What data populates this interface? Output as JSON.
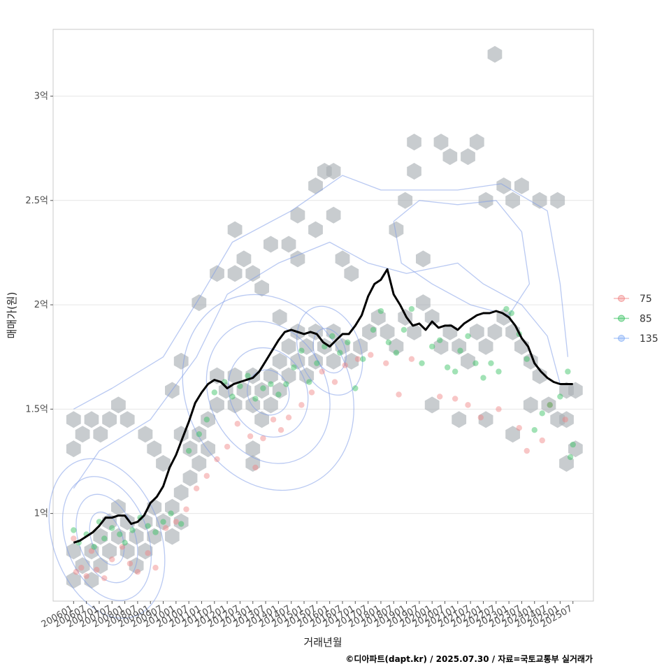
{
  "chart_data": {
    "type": "scatter",
    "xlabel": "거래년월",
    "ylabel": "매매가(원)",
    "caption": "©디아파트(dapt.kr) / 2025.07.30 / 자료=국토교통부 실거래가",
    "x_ticks": [
      "200601",
      "200607",
      "200701",
      "200707",
      "200801",
      "200807",
      "200901",
      "200907",
      "201001",
      "201007",
      "201101",
      "201107",
      "201201",
      "201207",
      "201301",
      "201307",
      "201401",
      "201407",
      "201501",
      "201507",
      "201601",
      "201607",
      "201701",
      "201707",
      "201801",
      "201807",
      "201901",
      "201907",
      "202001",
      "202007",
      "202101",
      "202107",
      "202201",
      "202207",
      "202301",
      "202307",
      "202401",
      "202407",
      "202501",
      "202507"
    ],
    "y_ticks": [
      {
        "value": 1.0,
        "label": "1억"
      },
      {
        "value": 1.5,
        "label": "1.5억"
      },
      {
        "value": 2.0,
        "label": "2억"
      },
      {
        "value": 2.5,
        "label": "2.5억"
      },
      {
        "value": 3.0,
        "label": "3억"
      }
    ],
    "ylim": [
      0.58,
      3.32
    ],
    "xlim": [
      2005.2,
      2026.3
    ],
    "grid": true,
    "legend_position": "right",
    "legend": [
      {
        "name": "75",
        "color": "#f08080"
      },
      {
        "name": "85",
        "color": "#2fbf5a"
      },
      {
        "name": "135",
        "color": "#7aa8f5"
      }
    ],
    "trend_line": {
      "color": "#000000",
      "x": [
        2006.0,
        2006.25,
        2006.5,
        2006.75,
        2007.0,
        2007.25,
        2007.5,
        2007.75,
        2008.0,
        2008.25,
        2008.5,
        2008.75,
        2009.0,
        2009.25,
        2009.5,
        2009.75,
        2010.0,
        2010.25,
        2010.5,
        2010.75,
        2011.0,
        2011.25,
        2011.5,
        2011.75,
        2012.0,
        2012.25,
        2012.5,
        2012.75,
        2013.0,
        2013.25,
        2013.5,
        2013.75,
        2014.0,
        2014.25,
        2014.5,
        2014.75,
        2015.0,
        2015.25,
        2015.5,
        2015.75,
        2016.0,
        2016.25,
        2016.5,
        2016.75,
        2017.0,
        2017.25,
        2017.5,
        2017.75,
        2018.0,
        2018.25,
        2018.5,
        2018.75,
        2019.0,
        2019.25,
        2019.5,
        2019.75,
        2020.0,
        2020.25,
        2020.5,
        2020.75,
        2021.0,
        2021.25,
        2021.5,
        2021.75,
        2022.0,
        2022.25,
        2022.5,
        2022.75,
        2023.0,
        2023.25,
        2023.5,
        2023.75,
        2024.0,
        2024.25,
        2024.5,
        2024.75,
        2025.0,
        2025.25,
        2025.5
      ],
      "y": [
        0.86,
        0.87,
        0.89,
        0.91,
        0.94,
        0.98,
        0.98,
        0.99,
        0.99,
        0.95,
        0.96,
        0.99,
        1.05,
        1.08,
        1.13,
        1.22,
        1.28,
        1.36,
        1.44,
        1.53,
        1.58,
        1.62,
        1.64,
        1.63,
        1.6,
        1.62,
        1.63,
        1.64,
        1.65,
        1.68,
        1.73,
        1.78,
        1.83,
        1.87,
        1.88,
        1.87,
        1.86,
        1.87,
        1.86,
        1.82,
        1.8,
        1.83,
        1.86,
        1.86,
        1.9,
        1.95,
        2.04,
        2.1,
        2.12,
        2.17,
        2.05,
        2.0,
        1.94,
        1.9,
        1.91,
        1.88,
        1.92,
        1.89,
        1.9,
        1.9,
        1.88,
        1.91,
        1.93,
        1.95,
        1.96,
        1.96,
        1.97,
        1.96,
        1.94,
        1.9,
        1.84,
        1.8,
        1.72,
        1.68,
        1.65,
        1.63,
        1.62,
        1.62,
        1.62
      ]
    },
    "scatter_points": [
      [
        2006.0,
        0.88,
        "75"
      ],
      [
        2006.1,
        0.72,
        "75"
      ],
      [
        2006.3,
        0.74,
        "75"
      ],
      [
        2006.5,
        0.7,
        "75"
      ],
      [
        2006.7,
        0.82,
        "75"
      ],
      [
        2006.9,
        0.73,
        "75"
      ],
      [
        2007.2,
        0.69,
        "75"
      ],
      [
        2007.5,
        0.78,
        "75"
      ],
      [
        2007.9,
        0.84,
        "75"
      ],
      [
        2008.2,
        0.76,
        "75"
      ],
      [
        2008.5,
        0.72,
        "75"
      ],
      [
        2008.9,
        0.81,
        "75"
      ],
      [
        2009.2,
        0.74,
        "75"
      ],
      [
        2009.6,
        0.93,
        "75"
      ],
      [
        2010.0,
        0.96,
        "75"
      ],
      [
        2010.4,
        1.02,
        "75"
      ],
      [
        2010.8,
        1.12,
        "75"
      ],
      [
        2011.2,
        1.18,
        "75"
      ],
      [
        2011.6,
        1.26,
        "75"
      ],
      [
        2012.0,
        1.32,
        "75"
      ],
      [
        2012.4,
        1.43,
        "75"
      ],
      [
        2012.9,
        1.37,
        "75"
      ],
      [
        2013.1,
        1.22,
        "75"
      ],
      [
        2013.4,
        1.36,
        "75"
      ],
      [
        2013.8,
        1.45,
        "75"
      ],
      [
        2014.1,
        1.4,
        "75"
      ],
      [
        2014.4,
        1.46,
        "75"
      ],
      [
        2014.9,
        1.52,
        "75"
      ],
      [
        2015.3,
        1.58,
        "75"
      ],
      [
        2015.7,
        1.68,
        "75"
      ],
      [
        2016.2,
        1.63,
        "75"
      ],
      [
        2016.6,
        1.71,
        "75"
      ],
      [
        2017.1,
        1.74,
        "75"
      ],
      [
        2017.6,
        1.76,
        "75"
      ],
      [
        2018.2,
        1.72,
        "75"
      ],
      [
        2018.7,
        1.57,
        "75"
      ],
      [
        2019.2,
        1.74,
        "75"
      ],
      [
        2020.3,
        1.56,
        "75"
      ],
      [
        2020.9,
        1.55,
        "75"
      ],
      [
        2021.4,
        1.52,
        "75"
      ],
      [
        2021.9,
        1.46,
        "75"
      ],
      [
        2022.6,
        1.5,
        "75"
      ],
      [
        2023.4,
        1.41,
        "75"
      ],
      [
        2023.7,
        1.3,
        "75"
      ],
      [
        2024.3,
        1.35,
        "75"
      ],
      [
        2024.6,
        1.52,
        "75"
      ],
      [
        2025.2,
        1.45,
        "75"
      ],
      [
        2006.0,
        0.92,
        "85"
      ],
      [
        2006.2,
        0.86,
        "85"
      ],
      [
        2006.5,
        0.9,
        "85"
      ],
      [
        2006.8,
        0.84,
        "85"
      ],
      [
        2007.0,
        0.96,
        "85"
      ],
      [
        2007.2,
        0.88,
        "85"
      ],
      [
        2007.5,
        0.93,
        "85"
      ],
      [
        2007.8,
        0.9,
        "85"
      ],
      [
        2008.0,
        0.86,
        "85"
      ],
      [
        2008.3,
        0.92,
        "85"
      ],
      [
        2008.6,
        0.98,
        "85"
      ],
      [
        2008.9,
        0.94,
        "85"
      ],
      [
        2009.2,
        0.91,
        "85"
      ],
      [
        2009.5,
        0.96,
        "85"
      ],
      [
        2009.8,
        1.0,
        "85"
      ],
      [
        2010.2,
        0.95,
        "85"
      ],
      [
        2010.5,
        1.3,
        "85"
      ],
      [
        2010.9,
        1.38,
        "85"
      ],
      [
        2011.2,
        1.45,
        "85"
      ],
      [
        2011.5,
        1.58,
        "85"
      ],
      [
        2011.9,
        1.63,
        "85"
      ],
      [
        2012.2,
        1.56,
        "85"
      ],
      [
        2012.5,
        1.61,
        "85"
      ],
      [
        2012.8,
        1.66,
        "85"
      ],
      [
        2013.1,
        1.55,
        "85"
      ],
      [
        2013.4,
        1.6,
        "85"
      ],
      [
        2013.7,
        1.62,
        "85"
      ],
      [
        2014.0,
        1.57,
        "85"
      ],
      [
        2014.3,
        1.62,
        "85"
      ],
      [
        2014.6,
        1.7,
        "85"
      ],
      [
        2014.9,
        1.78,
        "85"
      ],
      [
        2015.2,
        1.63,
        "85"
      ],
      [
        2015.5,
        1.72,
        "85"
      ],
      [
        2015.8,
        1.8,
        "85"
      ],
      [
        2016.1,
        1.85,
        "85"
      ],
      [
        2016.4,
        1.77,
        "85"
      ],
      [
        2016.7,
        1.82,
        "85"
      ],
      [
        2017.0,
        1.6,
        "85"
      ],
      [
        2017.3,
        1.74,
        "85"
      ],
      [
        2017.7,
        1.88,
        "85"
      ],
      [
        2018.0,
        1.97,
        "85"
      ],
      [
        2018.3,
        1.82,
        "85"
      ],
      [
        2018.6,
        1.77,
        "85"
      ],
      [
        2018.9,
        1.88,
        "85"
      ],
      [
        2019.2,
        1.98,
        "85"
      ],
      [
        2019.6,
        1.72,
        "85"
      ],
      [
        2020.0,
        1.8,
        "85"
      ],
      [
        2020.3,
        1.83,
        "85"
      ],
      [
        2020.6,
        1.7,
        "85"
      ],
      [
        2020.9,
        1.68,
        "85"
      ],
      [
        2021.1,
        1.78,
        "85"
      ],
      [
        2021.4,
        1.85,
        "85"
      ],
      [
        2021.7,
        1.72,
        "85"
      ],
      [
        2022.0,
        1.65,
        "85"
      ],
      [
        2022.3,
        1.72,
        "85"
      ],
      [
        2022.6,
        1.68,
        "85"
      ],
      [
        2022.9,
        1.98,
        "85"
      ],
      [
        2023.1,
        1.96,
        "85"
      ],
      [
        2023.4,
        1.86,
        "85"
      ],
      [
        2023.7,
        1.74,
        "85"
      ],
      [
        2024.0,
        1.4,
        "85"
      ],
      [
        2024.3,
        1.48,
        "85"
      ],
      [
        2024.6,
        1.52,
        "85"
      ],
      [
        2025.0,
        1.56,
        "85"
      ],
      [
        2025.3,
        1.68,
        "85"
      ],
      [
        2025.5,
        1.33,
        "85"
      ],
      [
        2025.4,
        1.27,
        "85"
      ]
    ],
    "hexbins": [
      [
        2006.0,
        0.82
      ],
      [
        2006.0,
        0.68
      ],
      [
        2006.35,
        0.75
      ],
      [
        2006.7,
        0.68
      ],
      [
        2006.7,
        0.82
      ],
      [
        2007.05,
        0.75
      ],
      [
        2007.05,
        0.89
      ],
      [
        2007.4,
        0.82
      ],
      [
        2007.4,
        0.96
      ],
      [
        2007.75,
        0.89
      ],
      [
        2007.75,
        1.03
      ],
      [
        2008.1,
        0.96
      ],
      [
        2008.1,
        0.82
      ],
      [
        2008.45,
        0.89
      ],
      [
        2008.45,
        0.75
      ],
      [
        2008.8,
        0.82
      ],
      [
        2008.8,
        0.96
      ],
      [
        2009.15,
        0.89
      ],
      [
        2009.15,
        1.03
      ],
      [
        2009.5,
        0.96
      ],
      [
        2009.85,
        0.89
      ],
      [
        2009.85,
        1.03
      ],
      [
        2010.2,
        0.96
      ],
      [
        2010.2,
        1.1
      ],
      [
        2010.55,
        1.17
      ],
      [
        2010.55,
        1.31
      ],
      [
        2010.9,
        1.24
      ],
      [
        2010.9,
        1.38
      ],
      [
        2011.25,
        1.45
      ],
      [
        2011.25,
        1.31
      ],
      [
        2011.6,
        1.52
      ],
      [
        2011.6,
        1.66
      ],
      [
        2011.95,
        1.59
      ],
      [
        2012.3,
        1.52
      ],
      [
        2012.3,
        1.66
      ],
      [
        2012.65,
        1.59
      ],
      [
        2013.0,
        1.52
      ],
      [
        2013.0,
        1.66
      ],
      [
        2013.35,
        1.59
      ],
      [
        2013.35,
        1.45
      ],
      [
        2013.7,
        1.52
      ],
      [
        2013.7,
        1.66
      ],
      [
        2014.05,
        1.59
      ],
      [
        2014.05,
        1.73
      ],
      [
        2014.4,
        1.66
      ],
      [
        2014.4,
        1.8
      ],
      [
        2014.75,
        1.73
      ],
      [
        2014.75,
        1.87
      ],
      [
        2015.1,
        1.8
      ],
      [
        2015.1,
        1.66
      ],
      [
        2015.45,
        1.73
      ],
      [
        2015.45,
        1.87
      ],
      [
        2015.8,
        1.8
      ],
      [
        2016.15,
        1.73
      ],
      [
        2016.15,
        1.87
      ],
      [
        2016.5,
        1.8
      ],
      [
        2016.85,
        1.73
      ],
      [
        2017.2,
        1.8
      ],
      [
        2017.55,
        1.87
      ],
      [
        2017.9,
        1.94
      ],
      [
        2018.25,
        1.87
      ],
      [
        2018.6,
        1.8
      ],
      [
        2018.95,
        1.94
      ],
      [
        2019.3,
        1.87
      ],
      [
        2019.65,
        2.01
      ],
      [
        2020.0,
        1.94
      ],
      [
        2020.35,
        1.8
      ],
      [
        2020.7,
        1.87
      ],
      [
        2021.05,
        1.8
      ],
      [
        2021.4,
        1.73
      ],
      [
        2021.75,
        1.87
      ],
      [
        2022.1,
        1.8
      ],
      [
        2022.45,
        1.87
      ],
      [
        2022.8,
        1.94
      ],
      [
        2023.15,
        1.87
      ],
      [
        2023.5,
        1.8
      ],
      [
        2023.85,
        1.73
      ],
      [
        2024.2,
        1.66
      ],
      [
        2024.55,
        1.52
      ],
      [
        2024.9,
        1.45
      ],
      [
        2025.25,
        1.59
      ],
      [
        2025.6,
        1.59
      ],
      [
        2025.25,
        1.45
      ],
      [
        2025.6,
        1.31
      ],
      [
        2025.25,
        1.24
      ],
      [
        2006.0,
        1.45
      ],
      [
        2006.0,
        1.31
      ],
      [
        2006.35,
        1.38
      ],
      [
        2006.7,
        1.45
      ],
      [
        2007.05,
        1.38
      ],
      [
        2007.4,
        1.45
      ],
      [
        2007.75,
        1.52
      ],
      [
        2008.1,
        1.45
      ],
      [
        2008.8,
        1.38
      ],
      [
        2009.15,
        1.31
      ],
      [
        2009.85,
        1.59
      ],
      [
        2010.2,
        1.73
      ],
      [
        2010.9,
        2.01
      ],
      [
        2011.6,
        2.15
      ],
      [
        2012.3,
        2.36
      ],
      [
        2012.3,
        2.15
      ],
      [
        2012.65,
        2.22
      ],
      [
        2013.0,
        2.15
      ],
      [
        2013.35,
        2.08
      ],
      [
        2013.7,
        2.29
      ],
      [
        2014.05,
        1.94
      ],
      [
        2014.4,
        2.29
      ],
      [
        2014.75,
        2.43
      ],
      [
        2014.75,
        2.22
      ],
      [
        2015.45,
        2.36
      ],
      [
        2015.45,
        2.57
      ],
      [
        2015.8,
        2.64
      ],
      [
        2016.15,
        2.64
      ],
      [
        2016.15,
        2.43
      ],
      [
        2016.5,
        2.22
      ],
      [
        2016.85,
        2.15
      ],
      [
        2018.6,
        2.36
      ],
      [
        2018.95,
        2.5
      ],
      [
        2019.3,
        2.64
      ],
      [
        2019.3,
        2.78
      ],
      [
        2019.65,
        2.22
      ],
      [
        2020.35,
        2.78
      ],
      [
        2020.7,
        2.71
      ],
      [
        2021.4,
        2.71
      ],
      [
        2021.75,
        2.78
      ],
      [
        2022.1,
        2.5
      ],
      [
        2022.45,
        3.2
      ],
      [
        2022.8,
        2.57
      ],
      [
        2023.15,
        2.5
      ],
      [
        2023.5,
        2.57
      ],
      [
        2024.2,
        2.5
      ],
      [
        2024.9,
        2.5
      ],
      [
        2020.0,
        1.52
      ],
      [
        2021.05,
        1.45
      ],
      [
        2022.1,
        1.45
      ],
      [
        2023.15,
        1.38
      ],
      [
        2023.85,
        1.52
      ],
      [
        2013.0,
        1.31
      ],
      [
        2013.0,
        1.24
      ],
      [
        2009.5,
        1.24
      ],
      [
        2010.2,
        1.38
      ]
    ]
  }
}
